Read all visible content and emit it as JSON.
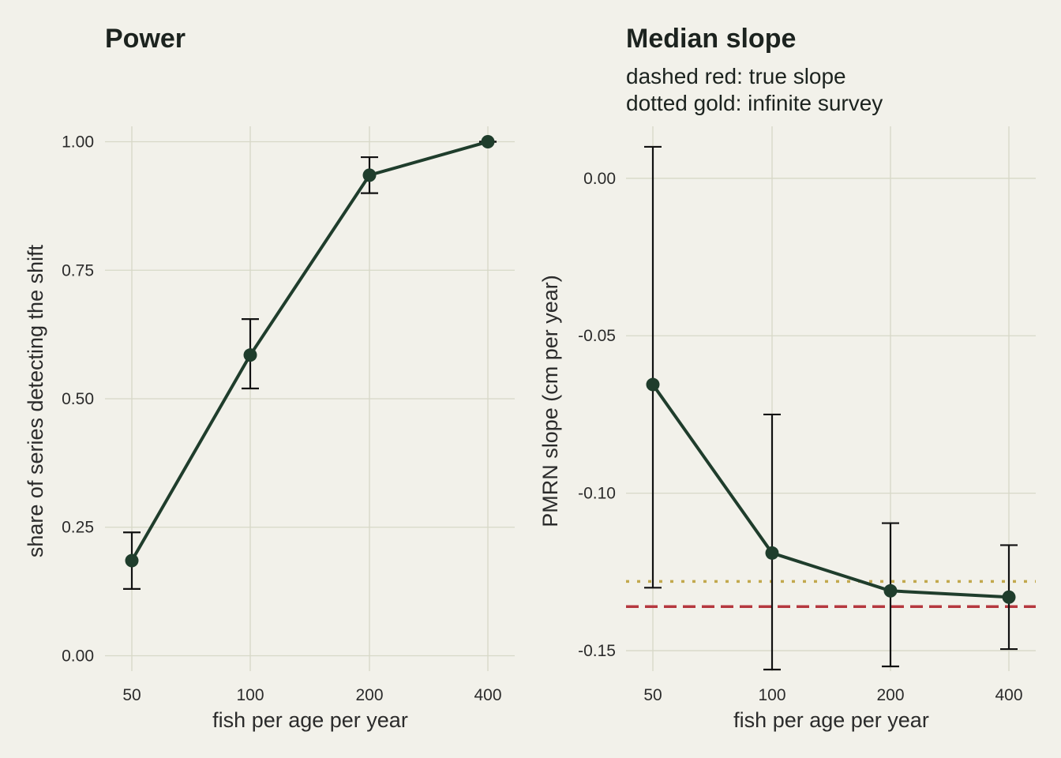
{
  "colors": {
    "background": "#f2f1ea",
    "grid": "#d7d8c7",
    "series": "#1f3d2c",
    "errorbar": "#111111",
    "true_slope": "#b5383f",
    "infinite_survey": "#c2a84d"
  },
  "chart_data": [
    {
      "type": "line",
      "title": "Power",
      "xlabel": "fish per age per year",
      "ylabel": "share of series detecting the shift",
      "categories": [
        "50",
        "100",
        "200",
        "400"
      ],
      "yticks": [
        "0.00",
        "0.25",
        "0.50",
        "0.75",
        "1.00"
      ],
      "ytick_values": [
        0,
        0.25,
        0.5,
        0.75,
        1.0
      ],
      "ylim": [
        -0.03,
        1.03
      ],
      "grid": true,
      "series": [
        {
          "values": [
            0.185,
            0.585,
            0.935,
            1.0
          ],
          "lower": [
            0.13,
            0.52,
            0.9,
            1.0
          ],
          "upper": [
            0.24,
            0.655,
            0.97,
            1.0
          ]
        }
      ]
    },
    {
      "type": "line",
      "title": "Median slope",
      "subtitle_lines": [
        "dashed red: true slope",
        "dotted gold: infinite survey"
      ],
      "xlabel": "fish per age per year",
      "ylabel": "PMRN slope (cm per year)",
      "categories": [
        "50",
        "100",
        "200",
        "400"
      ],
      "yticks": [
        "0.00",
        "-0.05",
        "-0.10",
        "-0.15"
      ],
      "ytick_values": [
        0,
        -0.05,
        -0.1,
        -0.15
      ],
      "ylim": [
        -0.1565,
        0.0165
      ],
      "grid": true,
      "series": [
        {
          "values": [
            -0.0655,
            -0.119,
            -0.131,
            -0.133
          ],
          "lower": [
            -0.13,
            -0.156,
            -0.155,
            -0.1495
          ],
          "upper": [
            0.01,
            -0.075,
            -0.1095,
            -0.1165
          ]
        }
      ],
      "reference_lines": [
        {
          "y": -0.136,
          "style": "dashed",
          "color": "#b5383f"
        },
        {
          "y": -0.128,
          "style": "dotted",
          "color": "#c2a84d"
        }
      ]
    }
  ]
}
